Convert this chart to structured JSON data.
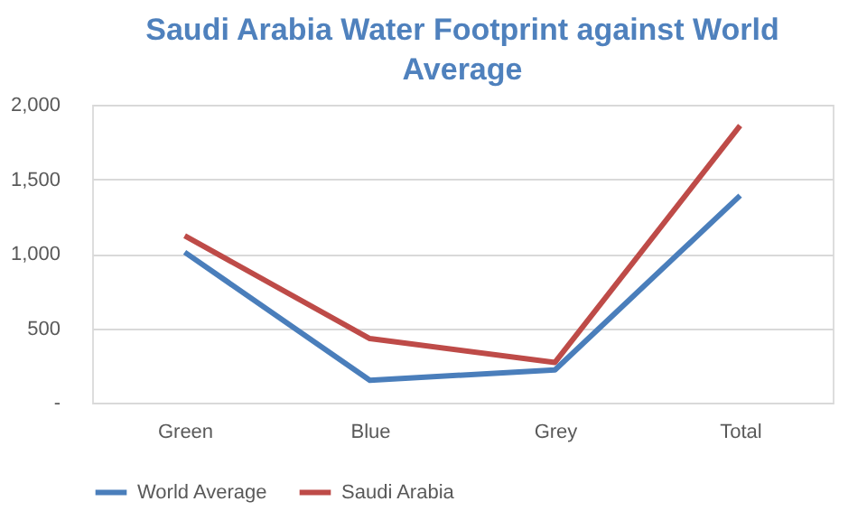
{
  "chart_data": {
    "type": "line",
    "title": "Saudi Arabia Water Footprint against World Average",
    "categories": [
      "Green",
      "Blue",
      "Grey",
      "Total"
    ],
    "series": [
      {
        "name": "World Average",
        "color": "#4a7ebb",
        "values": [
          1010,
          150,
          220,
          1390
        ]
      },
      {
        "name": "Saudi Arabia",
        "color": "#be4b48",
        "values": [
          1120,
          430,
          270,
          1860
        ]
      }
    ],
    "ylim": [
      0,
      2000
    ],
    "yticks": [
      {
        "value": 0,
        "label": "-"
      },
      {
        "value": 500,
        "label": "500"
      },
      {
        "value": 1000,
        "label": "1,000"
      },
      {
        "value": 1500,
        "label": "1,500"
      },
      {
        "value": 2000,
        "label": "2,000"
      }
    ],
    "grid": "y",
    "legend": "bottom",
    "marker": "none",
    "line_style": "solid"
  }
}
